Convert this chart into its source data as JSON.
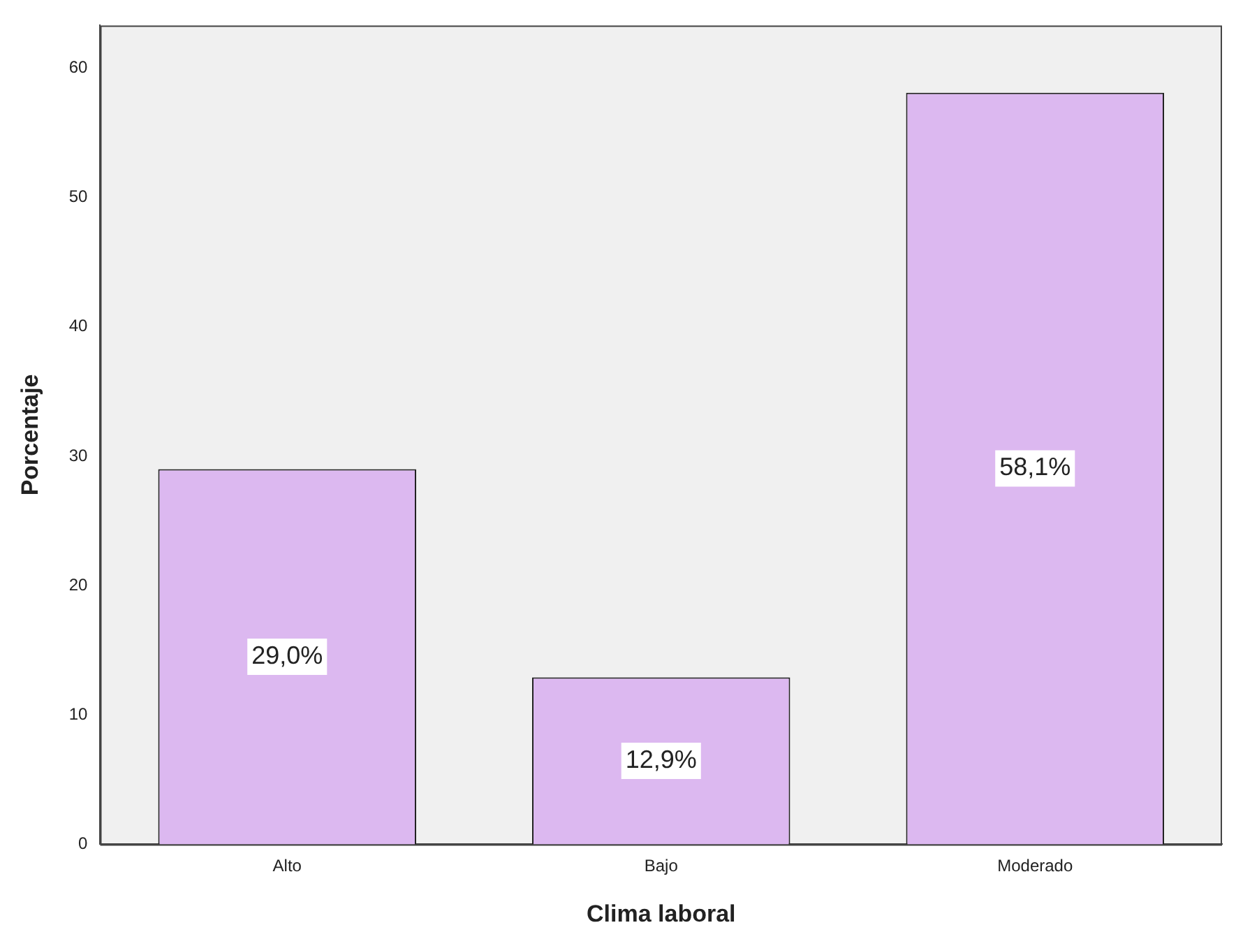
{
  "chart_data": {
    "type": "bar",
    "xlabel": "Clima laboral",
    "ylabel": "Porcentaje",
    "categories": [
      "Alto",
      "Bajo",
      "Moderado"
    ],
    "values": [
      29.0,
      12.9,
      58.1
    ],
    "value_labels": [
      "29,0%",
      "12,9%",
      "58,1%"
    ],
    "color": "#dcb8f0",
    "ylim": [
      0,
      63.3
    ],
    "yticks": [
      0,
      10,
      20,
      30,
      40,
      50,
      60
    ],
    "grid": false,
    "legend": false
  }
}
